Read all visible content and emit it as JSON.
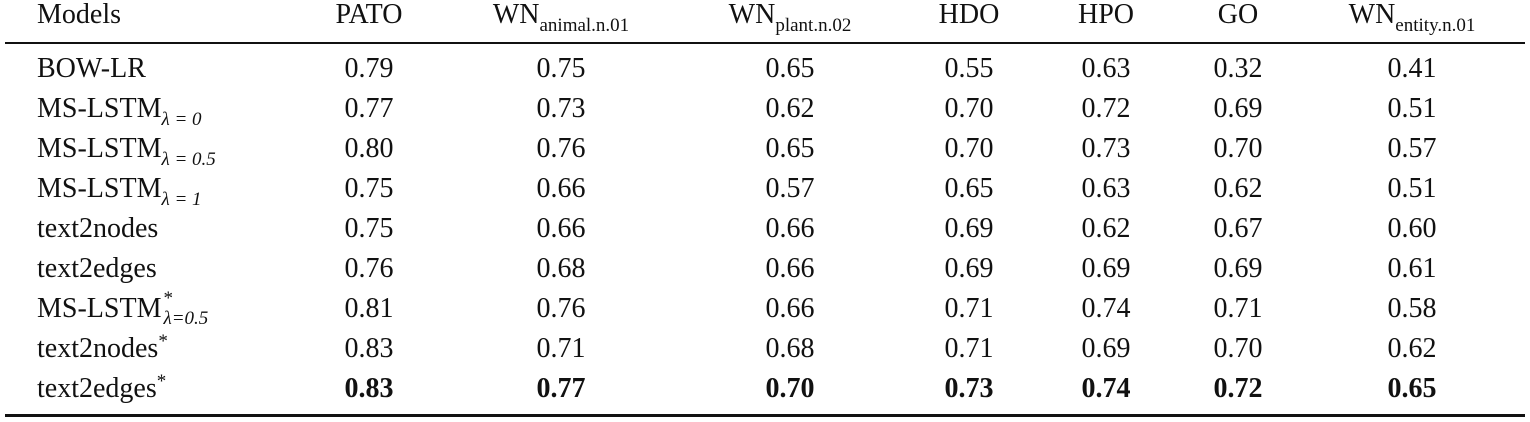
{
  "table": {
    "header": {
      "models": "Models",
      "pato": "PATO",
      "wn_animal_main": "WN",
      "wn_animal_sub": "animal.n.01",
      "wn_plant_main": "WN",
      "wn_plant_sub": "plant.n.02",
      "hdo": "HDO",
      "hpo": "HPO",
      "go": "GO",
      "wn_entity_main": "WN",
      "wn_entity_sub": "entity.n.01"
    },
    "rows": [
      {
        "model": "BOW-LR",
        "sub": "",
        "sup": "",
        "values": [
          "0.79",
          "0.75",
          "0.65",
          "0.55",
          "0.63",
          "0.32",
          "0.41"
        ]
      },
      {
        "model": "MS-LSTM",
        "sub": "λ = 0",
        "sup": "",
        "values": [
          "0.77",
          "0.73",
          "0.62",
          "0.70",
          "0.72",
          "0.69",
          "0.51"
        ]
      },
      {
        "model": "MS-LSTM",
        "sub": "λ = 0.5",
        "sup": "",
        "values": [
          "0.80",
          "0.76",
          "0.65",
          "0.70",
          "0.73",
          "0.70",
          "0.57"
        ]
      },
      {
        "model": "MS-LSTM",
        "sub": "λ = 1",
        "sup": "",
        "values": [
          "0.75",
          "0.66",
          "0.57",
          "0.65",
          "0.63",
          "0.62",
          "0.51"
        ]
      },
      {
        "model": "text2nodes",
        "sub": "",
        "sup": "",
        "values": [
          "0.75",
          "0.66",
          "0.66",
          "0.69",
          "0.62",
          "0.67",
          "0.60"
        ]
      },
      {
        "model": "text2edges",
        "sub": "",
        "sup": "",
        "values": [
          "0.76",
          "0.68",
          "0.66",
          "0.69",
          "0.69",
          "0.69",
          "0.61"
        ]
      },
      {
        "model": "MS-LSTM",
        "sub": "λ=0.5",
        "sup": "*",
        "values": [
          "0.81",
          "0.76",
          "0.66",
          "0.71",
          "0.74",
          "0.71",
          "0.58"
        ]
      },
      {
        "model": "text2nodes",
        "sub": "",
        "sup": "*",
        "values": [
          "0.83",
          "0.71",
          "0.68",
          "0.71",
          "0.69",
          "0.70",
          "0.62"
        ]
      },
      {
        "model": "text2edges",
        "sub": "",
        "sup": "*",
        "values": [
          "0.83",
          "0.77",
          "0.70",
          "0.73",
          "0.74",
          "0.72",
          "0.65"
        ]
      }
    ],
    "bold_row_index": 8
  }
}
